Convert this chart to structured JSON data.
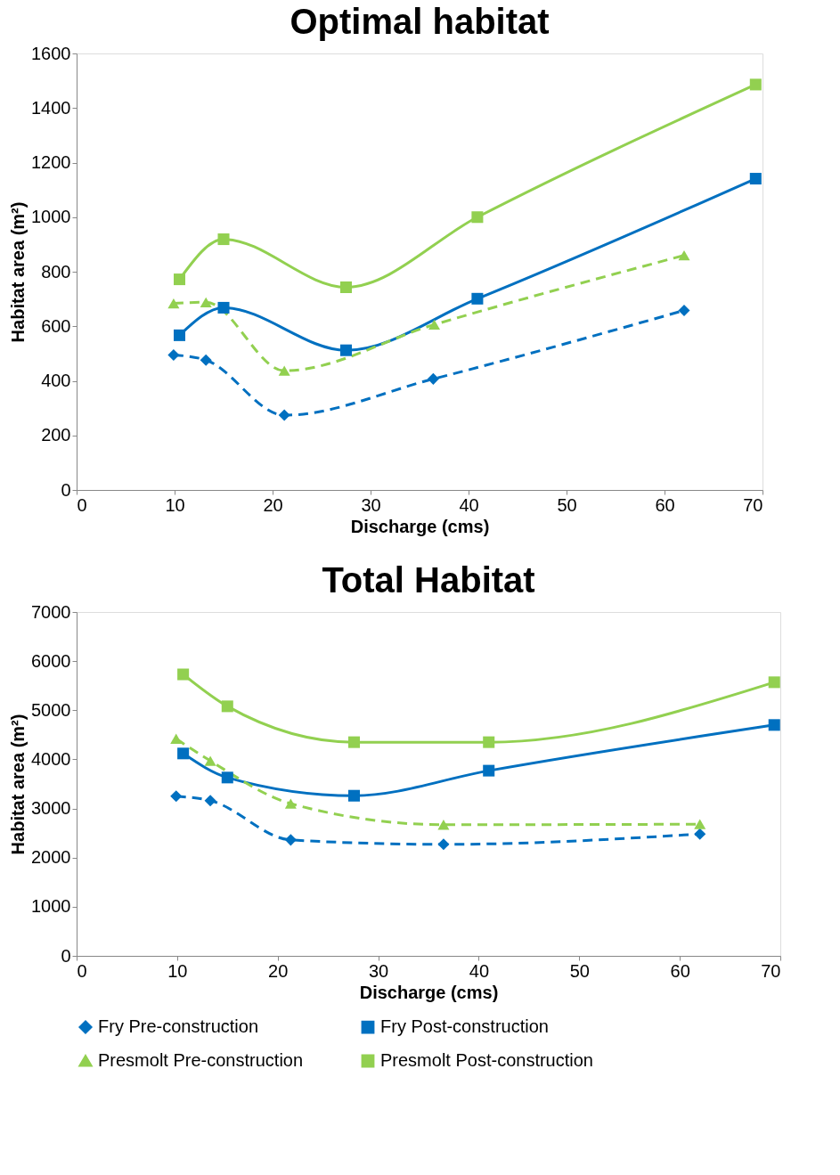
{
  "chart_data": [
    {
      "type": "line",
      "title": "Optimal habitat",
      "xlabel": "Discharge (cms)",
      "ylabel": "Habitat area (m²)",
      "xlim": [
        0,
        70
      ],
      "xticks": [
        0,
        10,
        20,
        30,
        40,
        50,
        60,
        70
      ],
      "ylim": [
        0,
        1600
      ],
      "yticks": [
        0,
        200,
        400,
        600,
        800,
        1000,
        1200,
        1400,
        1600
      ],
      "grid": false,
      "legend": "bottom",
      "series": [
        {
          "name": "Fry Pre-construction",
          "color": "#0070c0",
          "line_style": "dashed",
          "marker": "diamond",
          "x": [
            9.9,
            13.2,
            21.2,
            36.4,
            62
          ],
          "values": [
            495,
            476,
            274,
            407,
            658
          ]
        },
        {
          "name": "Fry Post-construction",
          "color": "#0070c0",
          "line_style": "solid",
          "marker": "square",
          "x": [
            10.5,
            15,
            27.5,
            40.9,
            69.3
          ],
          "values": [
            567,
            668,
            512,
            701,
            1141
          ]
        },
        {
          "name": "Presmolt Pre-construction",
          "color": "#92d050",
          "line_style": "dashed",
          "marker": "triangle",
          "x": [
            9.9,
            13.2,
            21.2,
            36.5,
            62
          ],
          "values": [
            684,
            688,
            437,
            606,
            860
          ]
        },
        {
          "name": "Presmolt Post-construction",
          "color": "#92d050",
          "line_style": "solid",
          "marker": "square",
          "x": [
            10.5,
            15,
            27.5,
            40.9,
            69.3
          ],
          "values": [
            772,
            919,
            743,
            1000,
            1486
          ]
        }
      ]
    },
    {
      "type": "line",
      "title": "Total Habitat",
      "xlabel": "Discharge (cms)",
      "ylabel": "Habitat area (m²)",
      "xlim": [
        0,
        70
      ],
      "xticks": [
        0,
        10,
        20,
        30,
        40,
        50,
        60,
        70
      ],
      "ylim": [
        0,
        7000
      ],
      "yticks": [
        0,
        1000,
        2000,
        3000,
        4000,
        5000,
        6000,
        7000
      ],
      "grid": false,
      "legend": "bottom",
      "series": [
        {
          "name": "Fry Pre-construction",
          "color": "#0070c0",
          "line_style": "dashed",
          "marker": "diamond",
          "x": [
            9.9,
            13.3,
            21.3,
            36.5,
            62
          ],
          "values": [
            3250,
            3160,
            2360,
            2270,
            2480
          ]
        },
        {
          "name": "Fry Post-construction",
          "color": "#0070c0",
          "line_style": "solid",
          "marker": "square",
          "x": [
            10.6,
            15,
            27.6,
            41,
            69.4
          ],
          "values": [
            4120,
            3630,
            3260,
            3770,
            4700
          ]
        },
        {
          "name": "Presmolt Pre-construction",
          "color": "#92d050",
          "line_style": "dashed",
          "marker": "triangle",
          "x": [
            9.9,
            13.3,
            21.3,
            36.5,
            62
          ],
          "values": [
            4420,
            3970,
            3100,
            2670,
            2680
          ]
        },
        {
          "name": "Presmolt Post-construction",
          "color": "#92d050",
          "line_style": "solid",
          "marker": "square",
          "x": [
            10.6,
            15,
            27.6,
            41,
            69.4
          ],
          "values": [
            5730,
            5080,
            4350,
            4350,
            5570
          ]
        }
      ]
    }
  ]
}
